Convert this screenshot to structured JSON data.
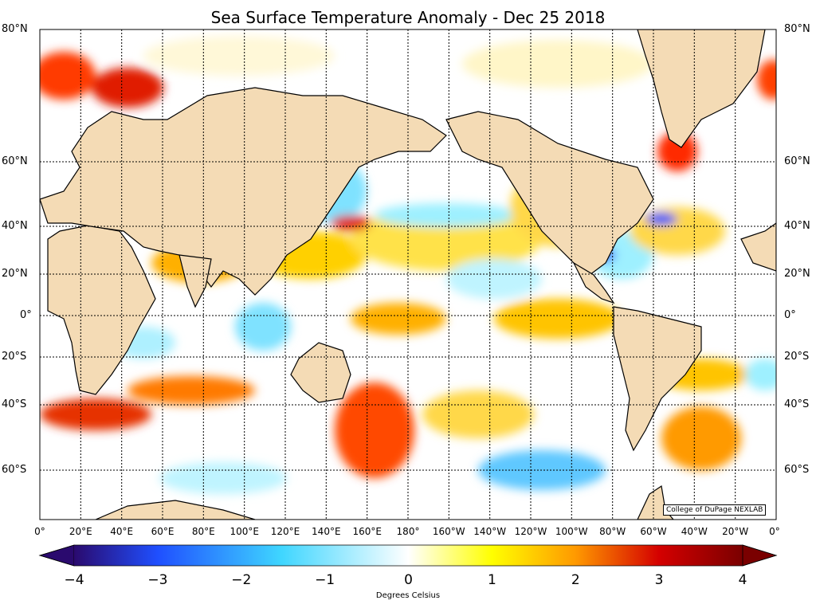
{
  "title": "Sea Surface Temperature Anomaly - Dec 25 2018",
  "lat_labels": [
    "80°N",
    "60°N",
    "40°N",
    "20°N",
    "0°",
    "20°S",
    "40°S",
    "60°S"
  ],
  "lon_labels": [
    "0°",
    "20°E",
    "40°E",
    "60°E",
    "80°E",
    "100°E",
    "120°E",
    "140°E",
    "160°E",
    "180°",
    "160°W",
    "140°W",
    "120°W",
    "100°W",
    "80°W",
    "60°W",
    "40°W",
    "20°W",
    "0°"
  ],
  "colorbar": {
    "ticks": [
      "−4",
      "−3",
      "−2",
      "−1",
      "0",
      "1",
      "2",
      "3",
      "4"
    ],
    "title": "Degrees Celsius",
    "range": [
      -4,
      4
    ],
    "colors": [
      "#2a0a6e",
      "#1f4fff",
      "#3fd6ff",
      "#ffffff",
      "#ffff00",
      "#ff6a00",
      "#d40000",
      "#7a0000"
    ]
  },
  "credit": "College of DuPage NEXLAB",
  "colors": {
    "land": "#f4dbb5",
    "ocean_neutral": "#ffffff",
    "coast": "#000000"
  }
}
